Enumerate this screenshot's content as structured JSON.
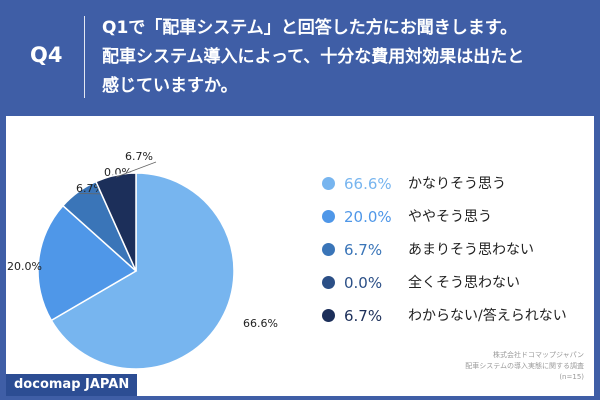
{
  "header": {
    "label": "Q4",
    "question_lines": [
      "Q1で「配車システム」と回答した方にお聞きします。",
      "配車システム導入によって、十分な費用対効果は出たと",
      "感じていますか。"
    ]
  },
  "chart_data": {
    "type": "pie",
    "start": "12 o'clock",
    "direction": "clockwise",
    "categories": [
      "かなりそう思う",
      "ややそう思う",
      "あまりそう思わない",
      "全くそう思わない",
      "わからない/答えられない"
    ],
    "values": [
      66.6,
      20.0,
      6.7,
      0.0,
      6.7
    ],
    "labels": [
      "66.6%",
      "20.0%",
      "6.7%",
      "0.0%",
      "6.7%"
    ],
    "colors": [
      "#77b5ef",
      "#4f97e8",
      "#3a75b8",
      "#2b4f86",
      "#1c2f5a"
    ],
    "legend_position": "right"
  },
  "legend": [
    {
      "pct": "66.6%",
      "name": "かなりそう思う",
      "color": "#77b5ef"
    },
    {
      "pct": "20.0%",
      "name": "ややそう思う",
      "color": "#4f97e8"
    },
    {
      "pct": "6.7%",
      "name": "あまりそう思わない",
      "color": "#3a75b8"
    },
    {
      "pct": "0.0%",
      "name": "全くそう思わない",
      "color": "#2b4f86"
    },
    {
      "pct": "6.7%",
      "name": "わからない/答えられない",
      "color": "#1c2f5a"
    }
  ],
  "source": {
    "lines": [
      "株式会社ドコマップジャパン",
      "配車システムの導入実態に関する調査",
      "(n=15)"
    ]
  },
  "brand": {
    "logo_text": "docomap JAPAN",
    "header_bg": "#3f5ea6",
    "logo_bg": "#2c4d93"
  }
}
